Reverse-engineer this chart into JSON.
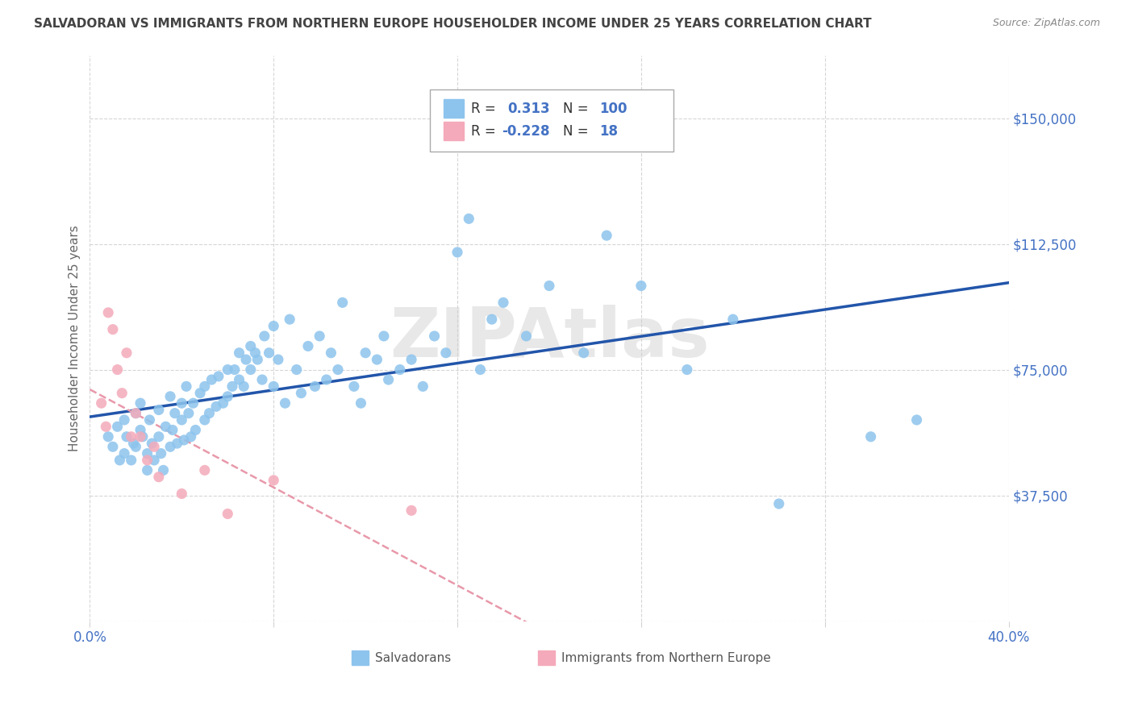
{
  "title": "SALVADORAN VS IMMIGRANTS FROM NORTHERN EUROPE HOUSEHOLDER INCOME UNDER 25 YEARS CORRELATION CHART",
  "source": "Source: ZipAtlas.com",
  "ylabel": "Householder Income Under 25 years",
  "xlim": [
    0.0,
    0.4
  ],
  "ylim": [
    0,
    168750
  ],
  "yticks": [
    0,
    37500,
    75000,
    112500,
    150000
  ],
  "ytick_labels": [
    "",
    "$37,500",
    "$75,000",
    "$112,500",
    "$150,000"
  ],
  "xticks": [
    0.0,
    0.08,
    0.16,
    0.24,
    0.32,
    0.4
  ],
  "xtick_labels": [
    "0.0%",
    "",
    "",
    "",
    "",
    "40.0%"
  ],
  "watermark": "ZIPAtlas",
  "color_salvadoran": "#8DC4ED",
  "color_northern_europe": "#F4AABA",
  "color_trend_salvadoran": "#2255AA",
  "color_trend_northern_europe": "#E899AA",
  "color_axis_labels": "#4472C4",
  "color_title": "#444444",
  "color_source": "#888888",
  "background_color": "#FFFFFF",
  "salvadoran_x": [
    0.008,
    0.01,
    0.012,
    0.013,
    0.015,
    0.015,
    0.016,
    0.018,
    0.019,
    0.02,
    0.02,
    0.022,
    0.022,
    0.023,
    0.025,
    0.025,
    0.026,
    0.027,
    0.028,
    0.03,
    0.03,
    0.031,
    0.032,
    0.033,
    0.035,
    0.035,
    0.036,
    0.037,
    0.038,
    0.04,
    0.04,
    0.041,
    0.042,
    0.043,
    0.044,
    0.045,
    0.046,
    0.048,
    0.05,
    0.05,
    0.052,
    0.053,
    0.055,
    0.056,
    0.058,
    0.06,
    0.06,
    0.062,
    0.063,
    0.065,
    0.065,
    0.067,
    0.068,
    0.07,
    0.07,
    0.072,
    0.073,
    0.075,
    0.076,
    0.078,
    0.08,
    0.08,
    0.082,
    0.085,
    0.087,
    0.09,
    0.092,
    0.095,
    0.098,
    0.1,
    0.103,
    0.105,
    0.108,
    0.11,
    0.115,
    0.118,
    0.12,
    0.125,
    0.128,
    0.13,
    0.135,
    0.14,
    0.145,
    0.15,
    0.155,
    0.16,
    0.165,
    0.17,
    0.175,
    0.18,
    0.19,
    0.2,
    0.215,
    0.225,
    0.24,
    0.26,
    0.28,
    0.3,
    0.34,
    0.36
  ],
  "salvadoran_y": [
    55000,
    52000,
    58000,
    48000,
    60000,
    50000,
    55000,
    48000,
    53000,
    62000,
    52000,
    57000,
    65000,
    55000,
    50000,
    45000,
    60000,
    53000,
    48000,
    63000,
    55000,
    50000,
    45000,
    58000,
    52000,
    67000,
    57000,
    62000,
    53000,
    65000,
    60000,
    54000,
    70000,
    62000,
    55000,
    65000,
    57000,
    68000,
    60000,
    70000,
    62000,
    72000,
    64000,
    73000,
    65000,
    75000,
    67000,
    70000,
    75000,
    72000,
    80000,
    70000,
    78000,
    82000,
    75000,
    80000,
    78000,
    72000,
    85000,
    80000,
    88000,
    70000,
    78000,
    65000,
    90000,
    75000,
    68000,
    82000,
    70000,
    85000,
    72000,
    80000,
    75000,
    95000,
    70000,
    65000,
    80000,
    78000,
    85000,
    72000,
    75000,
    78000,
    70000,
    85000,
    80000,
    110000,
    120000,
    75000,
    90000,
    95000,
    85000,
    100000,
    80000,
    115000,
    100000,
    75000,
    90000,
    35000,
    55000,
    60000
  ],
  "northern_europe_x": [
    0.005,
    0.007,
    0.008,
    0.01,
    0.012,
    0.014,
    0.016,
    0.018,
    0.02,
    0.022,
    0.025,
    0.028,
    0.03,
    0.04,
    0.05,
    0.06,
    0.08,
    0.14
  ],
  "northern_europe_y": [
    65000,
    58000,
    92000,
    87000,
    75000,
    68000,
    80000,
    55000,
    62000,
    55000,
    48000,
    52000,
    43000,
    38000,
    45000,
    32000,
    42000,
    33000
  ]
}
